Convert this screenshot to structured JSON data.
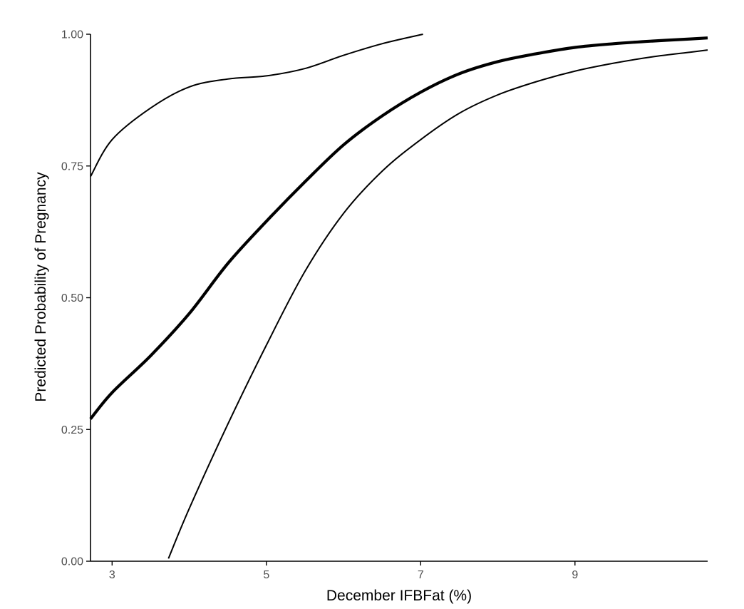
{
  "chart_data": {
    "type": "line",
    "title": "",
    "xlabel": "December IFBFat (%)",
    "ylabel": "Predicted Probability of Pregnancy",
    "xlim": [
      2.72,
      10.72
    ],
    "ylim": [
      0.0,
      1.0
    ],
    "x_ticks": [
      3,
      5,
      7,
      9
    ],
    "x_tick_labels": [
      "3",
      "5",
      "7",
      "9"
    ],
    "y_ticks": [
      0.0,
      0.25,
      0.5,
      0.75,
      1.0
    ],
    "y_tick_labels": [
      "0.00",
      "0.25",
      "0.50",
      "0.75",
      "1.00"
    ],
    "grid": false,
    "legend": "none",
    "series": [
      {
        "role": "fit",
        "weight": "bold",
        "x": [
          2.72,
          3.0,
          3.5,
          4.0,
          4.5,
          5.0,
          5.5,
          6.0,
          6.5,
          7.0,
          7.5,
          8.0,
          8.5,
          9.0,
          9.5,
          10.0,
          10.5,
          10.72
        ],
        "y": [
          0.27,
          0.32,
          0.39,
          0.47,
          0.565,
          0.645,
          0.72,
          0.79,
          0.845,
          0.89,
          0.925,
          0.948,
          0.963,
          0.975,
          0.982,
          0.987,
          0.991,
          0.993
        ]
      },
      {
        "role": "upper",
        "weight": "thin",
        "x": [
          2.72,
          3.0,
          3.5,
          4.0,
          4.5,
          5.0,
          5.5,
          6.0,
          6.5,
          7.03
        ],
        "y": [
          0.73,
          0.8,
          0.86,
          0.9,
          0.915,
          0.921,
          0.935,
          0.96,
          0.982,
          1.0
        ]
      },
      {
        "role": "lower",
        "weight": "thin",
        "x": [
          3.73,
          4.0,
          4.5,
          5.0,
          5.5,
          6.0,
          6.5,
          7.0,
          7.5,
          8.0,
          8.5,
          9.0,
          9.5,
          10.0,
          10.5,
          10.72
        ],
        "y": [
          0.005,
          0.1,
          0.26,
          0.41,
          0.55,
          0.66,
          0.74,
          0.8,
          0.85,
          0.885,
          0.91,
          0.93,
          0.945,
          0.957,
          0.966,
          0.97
        ]
      }
    ],
    "colors": {
      "line": "#000000",
      "axis": "#000000",
      "tick_label": "#4d4d4d"
    }
  }
}
